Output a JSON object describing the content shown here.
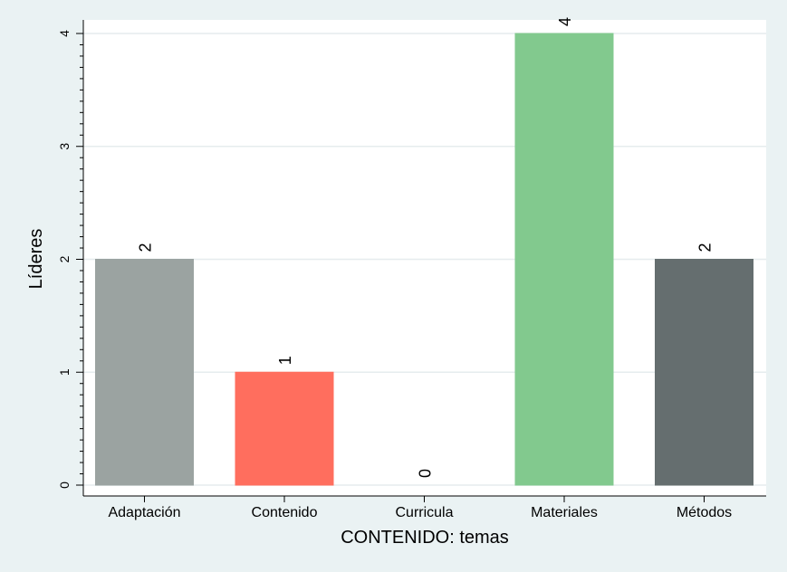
{
  "chart_data": {
    "type": "bar",
    "categories": [
      "Adaptación",
      "Contenido",
      "Curricula",
      "Materiales",
      "Métodos"
    ],
    "values": [
      2,
      1,
      0,
      4,
      2
    ],
    "colors": [
      "#9ba3a1",
      "#ff6e5e",
      "#c9c9c9",
      "#82c98e",
      "#656e6f"
    ],
    "xlabel": "CONTENIDO: temas",
    "ylabel": "Líderes",
    "ylim": [
      0,
      4
    ],
    "yticks": [
      0,
      1,
      2,
      3,
      4
    ],
    "grid": true,
    "data_labels": true,
    "legend": "none"
  }
}
